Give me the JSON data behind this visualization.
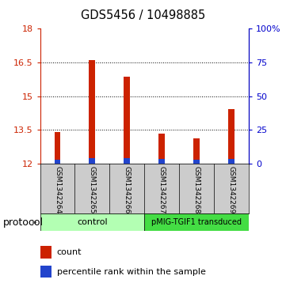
{
  "title": "GDS5456 / 10498885",
  "samples": [
    "GSM1342264",
    "GSM1342265",
    "GSM1342266",
    "GSM1342267",
    "GSM1342268",
    "GSM1342269"
  ],
  "count_values": [
    13.42,
    16.62,
    15.88,
    13.35,
    13.13,
    14.42
  ],
  "percentile_values": [
    12.16,
    12.25,
    12.24,
    12.2,
    12.16,
    12.2
  ],
  "ymin": 12,
  "ymax": 18,
  "yticks_left": [
    12,
    13.5,
    15,
    16.5,
    18
  ],
  "yticks_right": [
    0,
    25,
    50,
    75,
    100
  ],
  "ytick_labels_right": [
    "0",
    "25",
    "50",
    "75",
    "100%"
  ],
  "bar_color": "#cc2200",
  "blue_color": "#2244cc",
  "bar_width": 0.18,
  "control_color": "#b3ffb3",
  "pmig_color": "#44dd44",
  "protocol_label": "protocol",
  "legend_count": "count",
  "legend_percentile": "percentile rank within the sample",
  "background_color": "#ffffff",
  "label_area_color": "#cccccc",
  "left_tick_color": "#cc2200",
  "right_tick_color": "#0000cc",
  "grid_yticks": [
    13.5,
    15,
    16.5
  ]
}
